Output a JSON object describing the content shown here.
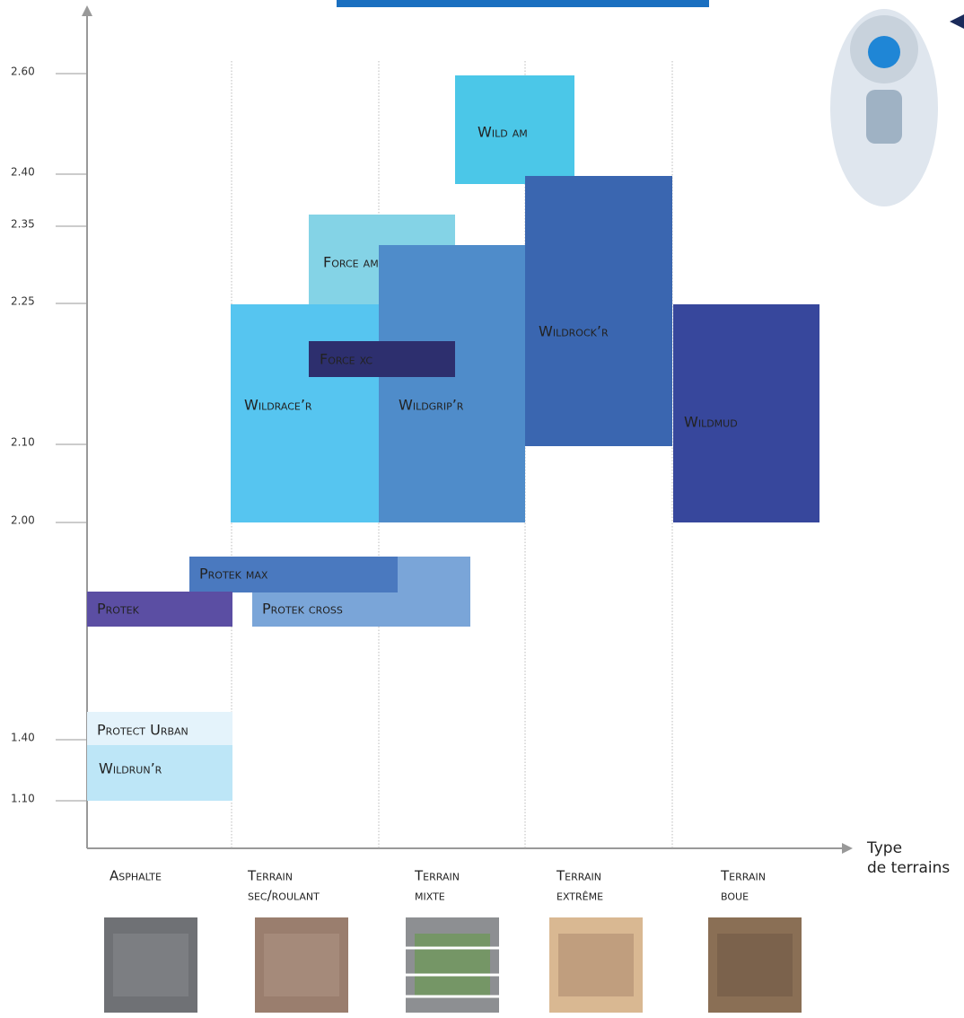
{
  "y_axis": {
    "ticks": [
      "2.60",
      "2.40",
      "2.35",
      "2.25",
      "2.10",
      "2.00",
      "1.40",
      "1.10"
    ]
  },
  "x_axis": {
    "title_lines": [
      "Type",
      "de terrains"
    ]
  },
  "terrains": [
    {
      "lines": [
        "Asphalte"
      ]
    },
    {
      "lines": [
        "Terrain",
        "sec/roulant"
      ]
    },
    {
      "lines": [
        "Terrain",
        "mixte"
      ]
    },
    {
      "lines": [
        "Terrain",
        "extrême"
      ]
    },
    {
      "lines": [
        "Terrain",
        "boue"
      ]
    }
  ],
  "tires": [
    {
      "name": "Wild am"
    },
    {
      "name": "Wildrock’r"
    },
    {
      "name": "Force am"
    },
    {
      "name": "Wildgrip’r"
    },
    {
      "name": "Wildrace’r"
    },
    {
      "name": "Force xc"
    },
    {
      "name": "Wildmud"
    },
    {
      "name": "Protek cross"
    },
    {
      "name": "Protek max"
    },
    {
      "name": "Protek"
    },
    {
      "name": "Protect Urban"
    },
    {
      "name": "Wildrun’r"
    }
  ]
}
